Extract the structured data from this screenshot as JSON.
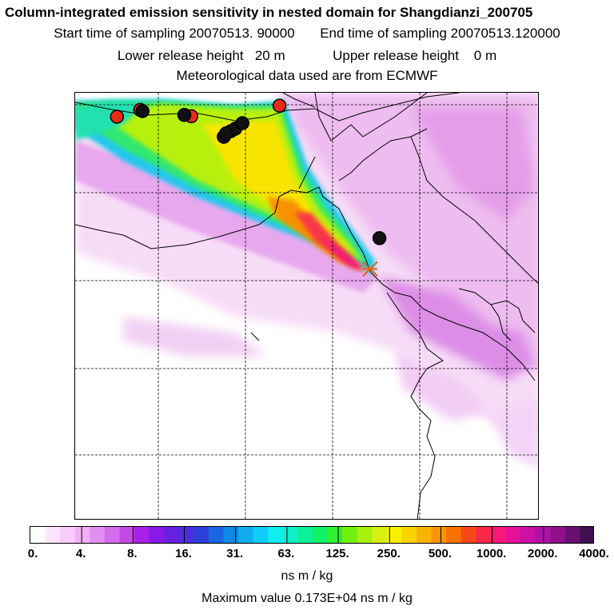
{
  "header": {
    "title": "Column-integrated emission sensitivity in nested domain for Shangdianzi_200705",
    "start_label": "Start time of sampling 20070513. 90000",
    "end_label": "End time of sampling 20070513.120000",
    "lower_label": "Lower release height   20 m",
    "upper_label": "Upper release height    0 m",
    "met_label": "Meteorological data used are from ECMWF"
  },
  "legend": {
    "ticks": [
      "0.",
      "4.",
      "8.",
      "16.",
      "31.",
      "63.",
      "125.",
      "250.",
      "500.",
      "1000.",
      "2000.",
      "4000."
    ],
    "colors": [
      "#ffffff",
      "#fde6fd",
      "#f8ccf8",
      "#f0b0f4",
      "#e28ef0",
      "#d46cec",
      "#c44ae8",
      "#a820e8",
      "#8a18e8",
      "#6820e0",
      "#4a30dc",
      "#2c40d8",
      "#1a66e0",
      "#1088e8",
      "#10acf0",
      "#10ccf8",
      "#10eef0",
      "#10f0c8",
      "#10f098",
      "#10f068",
      "#30f030",
      "#70f010",
      "#a8f010",
      "#d8f010",
      "#f8f000",
      "#f8d400",
      "#f8b400",
      "#f89400",
      "#f87000",
      "#f84818",
      "#f82848",
      "#f81878",
      "#e81098",
      "#cc10a8",
      "#b010a8",
      "#90108c",
      "#6a1070",
      "#401050"
    ],
    "unit": "ns m / kg",
    "max_value_label": "Maximum value  0.173E+04 ns m / kg"
  },
  "map": {
    "markers": [
      {
        "lonf": 0.09,
        "latf": 0.056,
        "color": "#e82a1a"
      },
      {
        "lonf": 0.14,
        "latf": 0.04,
        "color": "#e82a1a"
      },
      {
        "lonf": 0.25,
        "latf": 0.055,
        "color": "#e82a1a"
      },
      {
        "lonf": 0.44,
        "latf": 0.03,
        "color": "#e82a1a"
      },
      {
        "lonf": 0.145,
        "latf": 0.043,
        "color": "#111111"
      },
      {
        "lonf": 0.235,
        "latf": 0.052,
        "color": "#111111"
      },
      {
        "lonf": 0.32,
        "latf": 0.103,
        "color": "#111111"
      },
      {
        "lonf": 0.335,
        "latf": 0.09,
        "color": "#111111"
      },
      {
        "lonf": 0.345,
        "latf": 0.084,
        "color": "#111111"
      },
      {
        "lonf": 0.36,
        "latf": 0.071,
        "color": "#111111"
      },
      {
        "lonf": 0.325,
        "latf": 0.095,
        "color": "#111111"
      },
      {
        "lonf": 0.655,
        "latf": 0.34,
        "color": "#111111"
      }
    ],
    "receptor": {
      "lonf": 0.635,
      "latf": 0.412,
      "color": "#e06010"
    }
  }
}
